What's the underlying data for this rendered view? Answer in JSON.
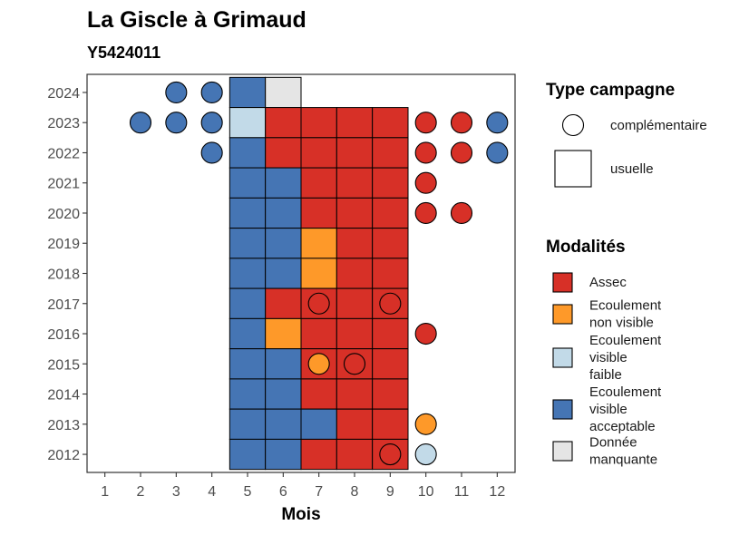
{
  "chart_data": {
    "type": "heatmap",
    "title": "La Giscle à Grimaud",
    "subtitle": "Y5424011",
    "xlabel": "Mois",
    "ylabel": "",
    "x_ticks": [
      "1",
      "2",
      "3",
      "4",
      "5",
      "6",
      "7",
      "8",
      "9",
      "10",
      "11",
      "12"
    ],
    "y_ticks": [
      "2012",
      "2013",
      "2014",
      "2015",
      "2016",
      "2017",
      "2018",
      "2019",
      "2020",
      "2021",
      "2022",
      "2023",
      "2024"
    ],
    "xlim": [
      0.5,
      12.5
    ],
    "ylim": [
      2011.4,
      2024.6
    ],
    "grid": false,
    "legend_position": "right",
    "colors": {
      "assec": "#D73027",
      "ecoulement_non_visible": "#FE9929",
      "ecoulement_visible_faible": "#C2DAE8",
      "ecoulement_visible_acceptable": "#4575B4",
      "donnee_manquante": "#E5E5E5"
    },
    "legend_type": {
      "title": "Type campagne",
      "entries": [
        {
          "shape": "circle",
          "label": "complémentaire"
        },
        {
          "shape": "square",
          "label": "usuelle"
        }
      ]
    },
    "legend_modalites": {
      "title": "Modalités",
      "entries": [
        {
          "key": "assec",
          "lines": [
            "Assec"
          ]
        },
        {
          "key": "ecoulement_non_visible",
          "lines": [
            "Ecoulement",
            "non visible"
          ]
        },
        {
          "key": "ecoulement_visible_faible",
          "lines": [
            "Ecoulement",
            "visible",
            "faible"
          ]
        },
        {
          "key": "ecoulement_visible_acceptable",
          "lines": [
            "Ecoulement",
            "visible",
            "acceptable"
          ]
        },
        {
          "key": "donnee_manquante",
          "lines": [
            "Donnée",
            "manquante"
          ]
        }
      ]
    },
    "usuelle": [
      {
        "year": 2024,
        "months": [
          5,
          6
        ],
        "values": [
          "ecoulement_visible_acceptable",
          "donnee_manquante"
        ]
      },
      {
        "year": 2023,
        "months": [
          5,
          6,
          7,
          8,
          9
        ],
        "values": [
          "ecoulement_visible_faible",
          "assec",
          "assec",
          "assec",
          "assec"
        ]
      },
      {
        "year": 2022,
        "months": [
          5,
          6,
          7,
          8,
          9
        ],
        "values": [
          "ecoulement_visible_acceptable",
          "assec",
          "assec",
          "assec",
          "assec"
        ]
      },
      {
        "year": 2021,
        "months": [
          5,
          6,
          7,
          8,
          9
        ],
        "values": [
          "ecoulement_visible_acceptable",
          "ecoulement_visible_acceptable",
          "assec",
          "assec",
          "assec"
        ]
      },
      {
        "year": 2020,
        "months": [
          5,
          6,
          7,
          8,
          9
        ],
        "values": [
          "ecoulement_visible_acceptable",
          "ecoulement_visible_acceptable",
          "assec",
          "assec",
          "assec"
        ]
      },
      {
        "year": 2019,
        "months": [
          5,
          6,
          7,
          8,
          9
        ],
        "values": [
          "ecoulement_visible_acceptable",
          "ecoulement_visible_acceptable",
          "ecoulement_non_visible",
          "assec",
          "assec"
        ]
      },
      {
        "year": 2018,
        "months": [
          5,
          6,
          7,
          8,
          9
        ],
        "values": [
          "ecoulement_visible_acceptable",
          "ecoulement_visible_acceptable",
          "ecoulement_non_visible",
          "assec",
          "assec"
        ]
      },
      {
        "year": 2017,
        "months": [
          5,
          6,
          7,
          8,
          9
        ],
        "values": [
          "ecoulement_visible_acceptable",
          "assec",
          "assec",
          "assec",
          "assec"
        ]
      },
      {
        "year": 2016,
        "months": [
          5,
          6,
          7,
          8,
          9
        ],
        "values": [
          "ecoulement_visible_acceptable",
          "ecoulement_non_visible",
          "assec",
          "assec",
          "assec"
        ]
      },
      {
        "year": 2015,
        "months": [
          5,
          6,
          7,
          8,
          9
        ],
        "values": [
          "ecoulement_visible_acceptable",
          "ecoulement_visible_acceptable",
          "assec",
          "assec",
          "assec"
        ]
      },
      {
        "year": 2014,
        "months": [
          5,
          6,
          7,
          8,
          9
        ],
        "values": [
          "ecoulement_visible_acceptable",
          "ecoulement_visible_acceptable",
          "assec",
          "assec",
          "assec"
        ]
      },
      {
        "year": 2013,
        "months": [
          5,
          6,
          7,
          8,
          9
        ],
        "values": [
          "ecoulement_visible_acceptable",
          "ecoulement_visible_acceptable",
          "ecoulement_visible_acceptable",
          "assec",
          "assec"
        ]
      },
      {
        "year": 2012,
        "months": [
          5,
          6,
          7,
          8,
          9
        ],
        "values": [
          "ecoulement_visible_acceptable",
          "ecoulement_visible_acceptable",
          "assec",
          "assec",
          "assec"
        ]
      }
    ],
    "complementaire": [
      {
        "year": 2024,
        "month": 3,
        "value": "ecoulement_visible_acceptable"
      },
      {
        "year": 2024,
        "month": 4,
        "value": "ecoulement_visible_acceptable"
      },
      {
        "year": 2023,
        "month": 2,
        "value": "ecoulement_visible_acceptable"
      },
      {
        "year": 2023,
        "month": 3,
        "value": "ecoulement_visible_acceptable"
      },
      {
        "year": 2023,
        "month": 4,
        "value": "ecoulement_visible_acceptable"
      },
      {
        "year": 2023,
        "month": 10,
        "value": "assec"
      },
      {
        "year": 2023,
        "month": 11,
        "value": "assec"
      },
      {
        "year": 2023,
        "month": 12,
        "value": "ecoulement_visible_acceptable"
      },
      {
        "year": 2022,
        "month": 4,
        "value": "ecoulement_visible_acceptable"
      },
      {
        "year": 2022,
        "month": 10,
        "value": "assec"
      },
      {
        "year": 2022,
        "month": 11,
        "value": "assec"
      },
      {
        "year": 2022,
        "month": 12,
        "value": "ecoulement_visible_acceptable"
      },
      {
        "year": 2021,
        "month": 10,
        "value": "assec"
      },
      {
        "year": 2020,
        "month": 10,
        "value": "assec"
      },
      {
        "year": 2020,
        "month": 11,
        "value": "assec"
      },
      {
        "year": 2017,
        "month": 7,
        "value": "assec"
      },
      {
        "year": 2017,
        "month": 9,
        "value": "assec"
      },
      {
        "year": 2016,
        "month": 10,
        "value": "assec"
      },
      {
        "year": 2015,
        "month": 7,
        "value": "ecoulement_non_visible"
      },
      {
        "year": 2015,
        "month": 8,
        "value": "assec"
      },
      {
        "year": 2013,
        "month": 10,
        "value": "ecoulement_non_visible"
      },
      {
        "year": 2012,
        "month": 9,
        "value": "assec"
      },
      {
        "year": 2012,
        "month": 10,
        "value": "ecoulement_visible_faible"
      }
    ]
  }
}
